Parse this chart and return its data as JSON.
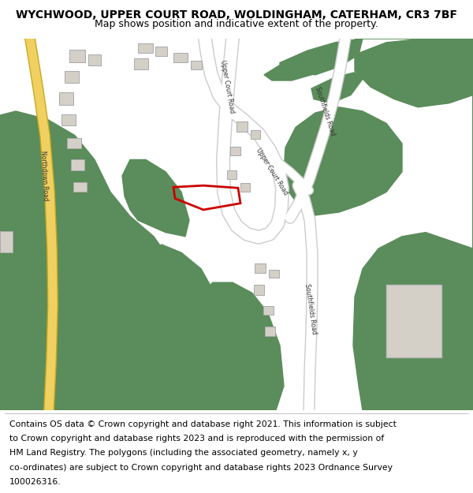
{
  "title": "WYCHWOOD, UPPER COURT ROAD, WOLDINGHAM, CATERHAM, CR3 7BF",
  "subtitle": "Map shows position and indicative extent of the property.",
  "footer_lines": [
    "Contains OS data © Crown copyright and database right 2021. This information is subject",
    "to Crown copyright and database rights 2023 and is reproduced with the permission of",
    "HM Land Registry. The polygons (including the associated geometry, namely x, y",
    "co-ordinates) are subject to Crown copyright and database rights 2023 Ordnance Survey",
    "100026316."
  ],
  "road_color": "#ffffff",
  "road_edge_color": "#cccccc",
  "green_color": "#5b8c5b",
  "building_color": "#d4d0c8",
  "building_edge": "#aaaaaa",
  "yellow_road_color": "#f0d060",
  "yellow_road_edge": "#c8a820",
  "red_plot_color": "#cc0000",
  "map_bg": "#f2f0eb",
  "title_fontsize": 10,
  "subtitle_fontsize": 9,
  "footer_fontsize": 7.8
}
